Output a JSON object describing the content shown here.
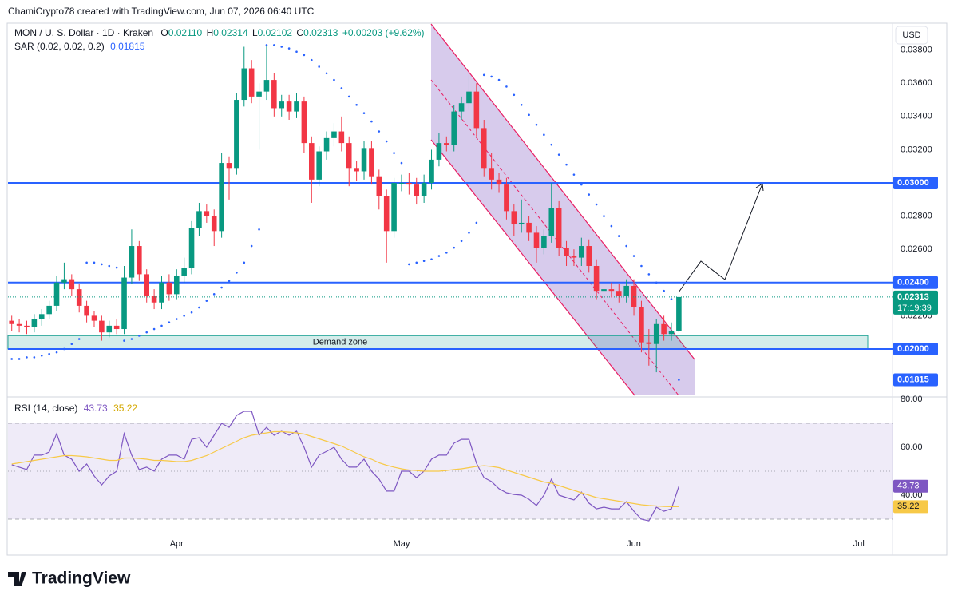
{
  "header": {
    "attribution": "ChamiCrypto78 created with TradingView.com, Jun 07, 2026 06:40 UTC",
    "currency": "USD"
  },
  "chart_data": [
    {
      "type": "candlestick",
      "title": "MON / U. S. Dollar · 1D · Kraken",
      "ohlc_legend": [
        {
          "key": "O",
          "value": "0.02110"
        },
        {
          "key": "H",
          "value": "0.02314"
        },
        {
          "key": "L",
          "value": "0.02102"
        },
        {
          "key": "C",
          "value": "0.02313"
        }
      ],
      "change": "+0.00203 (+9.62%)",
      "categories": [
        null,
        null,
        null,
        null,
        null,
        null,
        null,
        null,
        null,
        null,
        null,
        null,
        null,
        null,
        null,
        null,
        null,
        null,
        null,
        null,
        null,
        null,
        "Apr",
        null,
        null,
        null,
        null,
        null,
        null,
        null,
        null,
        null,
        null,
        null,
        null,
        null,
        null,
        null,
        null,
        null,
        null,
        null,
        null,
        null,
        null,
        null,
        null,
        null,
        null,
        null,
        null,
        null,
        "May",
        null,
        null,
        null,
        null,
        null,
        null,
        null,
        null,
        null,
        null,
        null,
        null,
        null,
        null,
        null,
        null,
        null,
        null,
        null,
        null,
        null,
        null,
        null,
        null,
        null,
        null,
        null,
        null,
        null,
        null,
        "Jun",
        null,
        null,
        null,
        null,
        null,
        null,
        null,
        null,
        null,
        null,
        null,
        null,
        null,
        null,
        null,
        null,
        null,
        null,
        null,
        null,
        null,
        null,
        null,
        null,
        null,
        null,
        null,
        null,
        null,
        "Jul",
        null,
        null,
        null,
        null
      ],
      "open": [
        0.0217,
        0.0215,
        0.0214,
        0.0213,
        0.0218,
        0.0221,
        0.0226,
        0.024,
        0.0242,
        0.0236,
        0.0226,
        0.022,
        0.0217,
        0.021,
        0.0214,
        0.0212,
        0.0243,
        0.0262,
        0.0245,
        0.0232,
        0.0228,
        0.024,
        0.0233,
        0.0244,
        0.0249,
        0.0273,
        0.0283,
        0.028,
        0.0271,
        0.0312,
        0.0309,
        0.035,
        0.0369,
        0.0352,
        0.0355,
        0.0362,
        0.0345,
        0.0349,
        0.0343,
        0.0349,
        0.0324,
        0.0302,
        0.0319,
        0.0327,
        0.0331,
        0.0324,
        0.0309,
        0.0307,
        0.0321,
        0.0304,
        0.0292,
        0.0271,
        0.03,
        0.03,
        0.0299,
        0.0292,
        0.03,
        0.0314,
        0.0324,
        0.0323,
        0.0343,
        0.0348,
        0.0355,
        0.0333,
        0.0309,
        0.0302,
        0.0299,
        0.0283,
        0.0275,
        0.0276,
        0.027,
        0.0261,
        0.0268,
        0.0285,
        0.0261,
        0.0256,
        0.0255,
        0.0262,
        0.025,
        0.0235,
        0.0236,
        0.0235,
        0.0232,
        0.0238,
        0.0225,
        0.0204,
        0.0203,
        0.0215,
        0.0209,
        0.0211,
        null,
        null,
        null,
        null,
        null,
        null,
        null,
        null,
        null,
        null,
        null,
        null,
        null,
        null,
        null,
        null,
        null,
        null,
        null,
        null,
        null,
        null,
        null,
        null,
        null,
        null,
        null,
        null
      ],
      "high": [
        0.022,
        0.0218,
        0.0217,
        0.0221,
        0.0224,
        0.0229,
        0.0244,
        0.0252,
        0.0245,
        0.0239,
        0.0229,
        0.0223,
        0.022,
        0.0217,
        0.0218,
        0.025,
        0.0272,
        0.0265,
        0.0248,
        0.0236,
        0.0244,
        0.0245,
        0.0248,
        0.0255,
        0.0277,
        0.0288,
        0.0287,
        0.0284,
        0.0318,
        0.0316,
        0.0354,
        0.0382,
        0.0374,
        0.036,
        0.0383,
        0.0366,
        0.0353,
        0.0353,
        0.0354,
        0.0352,
        0.0328,
        0.0322,
        0.0331,
        0.0336,
        0.034,
        0.0328,
        0.0313,
        0.0325,
        0.0325,
        0.0308,
        0.0296,
        0.0303,
        0.0305,
        0.0306,
        0.0303,
        0.0305,
        0.032,
        0.033,
        0.0328,
        0.0347,
        0.0352,
        0.0365,
        0.036,
        0.0338,
        0.0318,
        0.0306,
        0.0303,
        0.0287,
        0.029,
        0.028,
        0.0274,
        0.0272,
        0.03,
        0.0289,
        0.0265,
        0.026,
        0.0267,
        0.0266,
        0.0254,
        0.0242,
        0.024,
        0.0239,
        0.0242,
        0.0242,
        0.0229,
        0.0212,
        0.0218,
        0.022,
        0.0216,
        0.02314,
        null,
        null,
        null,
        null,
        null,
        null,
        null,
        null,
        null,
        null,
        null,
        null,
        null,
        null,
        null,
        null,
        null,
        null,
        null,
        null,
        null,
        null,
        null,
        null,
        null,
        null,
        null,
        null
      ],
      "low": [
        0.0211,
        0.021,
        0.0209,
        0.021,
        0.0214,
        0.0218,
        0.0223,
        0.0236,
        0.0232,
        0.0222,
        0.0216,
        0.0213,
        0.0205,
        0.0207,
        0.0209,
        0.0209,
        0.0239,
        0.0241,
        0.0228,
        0.0224,
        0.0224,
        0.0229,
        0.023,
        0.024,
        0.0245,
        0.0268,
        0.0276,
        0.0262,
        0.0267,
        0.029,
        0.0305,
        0.0346,
        0.0348,
        0.032,
        0.035,
        0.034,
        0.034,
        0.0338,
        0.0339,
        0.0318,
        0.0288,
        0.0298,
        0.0314,
        0.0322,
        0.0319,
        0.0298,
        0.0301,
        0.0302,
        0.0299,
        0.0284,
        0.0252,
        0.0267,
        0.0295,
        0.0293,
        0.0287,
        0.0288,
        0.0296,
        0.031,
        0.0319,
        0.0319,
        0.0338,
        0.0344,
        0.0328,
        0.0304,
        0.0296,
        0.0294,
        0.0278,
        0.0268,
        0.027,
        0.0265,
        0.0252,
        0.0257,
        0.0264,
        0.0256,
        0.025,
        0.025,
        0.025,
        0.0246,
        0.023,
        0.0231,
        0.0231,
        0.0228,
        0.0228,
        0.022,
        0.0198,
        0.019,
        0.0186,
        0.0205,
        0.0205,
        0.02102,
        null,
        null,
        null,
        null,
        null,
        null,
        null,
        null,
        null,
        null,
        null,
        null,
        null,
        null,
        null,
        null,
        null,
        null,
        null,
        null,
        null,
        null,
        null,
        null,
        null,
        null,
        null,
        null
      ],
      "close": [
        0.0215,
        0.0214,
        0.0213,
        0.0218,
        0.0221,
        0.0226,
        0.024,
        0.0242,
        0.0236,
        0.0226,
        0.022,
        0.0217,
        0.021,
        0.0214,
        0.0212,
        0.0243,
        0.0262,
        0.0245,
        0.0232,
        0.0228,
        0.024,
        0.0233,
        0.0244,
        0.0249,
        0.0273,
        0.0283,
        0.028,
        0.0271,
        0.0312,
        0.0309,
        0.035,
        0.0369,
        0.0352,
        0.0355,
        0.0362,
        0.0345,
        0.0349,
        0.0343,
        0.0349,
        0.0324,
        0.0302,
        0.0319,
        0.0327,
        0.0331,
        0.0324,
        0.0309,
        0.0307,
        0.0321,
        0.0304,
        0.0292,
        0.0271,
        0.03,
        0.03,
        0.0299,
        0.0292,
        0.03,
        0.0314,
        0.0324,
        0.0323,
        0.0343,
        0.0348,
        0.0355,
        0.0333,
        0.0309,
        0.0302,
        0.0299,
        0.0283,
        0.0275,
        0.0276,
        0.027,
        0.0261,
        0.0268,
        0.0285,
        0.0261,
        0.0256,
        0.0255,
        0.0262,
        0.025,
        0.0235,
        0.0236,
        0.0235,
        0.0232,
        0.0238,
        0.0225,
        0.0204,
        0.0203,
        0.0215,
        0.0209,
        0.0211,
        0.02313,
        null,
        null,
        null,
        null,
        null,
        null,
        null,
        null,
        null,
        null,
        null,
        null,
        null,
        null,
        null,
        null,
        null,
        null,
        null,
        null,
        null,
        null,
        null,
        null,
        null,
        null,
        null,
        null
      ],
      "up_color": "#089981",
      "down_color": "#f23645",
      "last_label": "0.02313",
      "countdown": "17:19:39",
      "series": [
        {
          "name": "SAR (0.02, 0.02, 0.2)",
          "color": "#2962ff",
          "last_label": "0.01815",
          "values": [
            0.0194,
            0.0194,
            0.0195,
            0.0195,
            0.0196,
            0.0197,
            0.0198,
            0.02,
            0.0203,
            0.0206,
            0.0252,
            0.0252,
            0.0251,
            0.025,
            0.0249,
            0.0205,
            0.0206,
            0.0208,
            0.021,
            0.0212,
            0.0214,
            0.0216,
            0.0218,
            0.022,
            0.0222,
            0.0225,
            0.0229,
            0.0233,
            0.0237,
            0.0241,
            0.0246,
            0.0252,
            0.0262,
            0.0272,
            0.0383,
            0.0383,
            0.0382,
            0.0381,
            0.0379,
            0.0377,
            0.0374,
            0.037,
            0.0366,
            0.0362,
            0.0357,
            0.0352,
            0.0347,
            0.0342,
            0.0337,
            0.0331,
            0.0325,
            0.0318,
            0.0312,
            0.0251,
            0.0252,
            0.0253,
            0.0254,
            0.0256,
            0.0258,
            0.0261,
            0.0265,
            0.027,
            0.0276,
            0.0365,
            0.0364,
            0.0362,
            0.0358,
            0.0353,
            0.0347,
            0.0341,
            0.0335,
            0.0329,
            0.0323,
            0.0317,
            0.0311,
            0.0305,
            0.0299,
            0.0293,
            0.0287,
            0.028,
            0.0274,
            0.0268,
            0.0262,
            0.0256,
            0.025,
            0.0245,
            0.024,
            0.0235,
            0.023,
            0.01815,
            null,
            null,
            null,
            null,
            null,
            null,
            null,
            null,
            null,
            null,
            null,
            null,
            null,
            null,
            null,
            null,
            null,
            null,
            null,
            null,
            null,
            null,
            null,
            null,
            null,
            null,
            null,
            null
          ]
        }
      ],
      "hlines": [
        {
          "value": 0.03,
          "label": "0.03000"
        },
        {
          "value": 0.024,
          "label": "0.02400"
        },
        {
          "value": 0.02,
          "label": "0.02000"
        }
      ],
      "hline_color": "#2962ff",
      "zone": {
        "label": "Demand zone",
        "range": [
          0.02,
          0.0208
        ]
      },
      "ylim": [
        0.01721,
        0.03957
      ],
      "yticks": [
        {
          "value": 0.022,
          "label": "0.02200"
        },
        {
          "value": 0.026,
          "label": "0.02600"
        },
        {
          "value": 0.028,
          "label": "0.02800"
        },
        {
          "value": 0.032,
          "label": "0.03200"
        },
        {
          "value": 0.034,
          "label": "0.03400"
        },
        {
          "value": 0.036,
          "label": "0.03600"
        },
        {
          "value": 0.038,
          "label": "0.03800"
        }
      ]
    },
    {
      "type": "line",
      "title": "RSI (14, close)",
      "series": [
        {
          "color": "#7e57c2",
          "last_label": "43.73",
          "values": [
            52.7,
            51.7,
            50.7,
            56.7,
            56.7,
            58,
            65.7,
            56.7,
            55,
            50,
            53,
            48,
            44.3,
            48,
            50,
            65.7,
            56.7,
            50.7,
            51.7,
            50,
            55,
            56.7,
            56.7,
            55,
            63.3,
            64,
            60,
            65,
            70,
            68.3,
            73.3,
            75,
            75,
            65,
            68.3,
            65,
            66.7,
            65,
            66.7,
            60,
            51.7,
            56.7,
            58.3,
            60,
            55,
            51.7,
            51.7,
            55,
            50,
            46.7,
            41.7,
            41.7,
            50,
            50,
            47.3,
            50,
            55,
            56.7,
            56.7,
            61.7,
            63.3,
            63.3,
            53.3,
            47.3,
            45.7,
            42.7,
            41,
            40.3,
            40,
            38.3,
            35.7,
            40,
            46.7,
            40,
            39,
            38,
            41.3,
            36.7,
            34.3,
            35,
            34.3,
            34.3,
            37.3,
            33.3,
            30,
            29.3,
            35,
            33.3,
            34.3,
            43.73,
            null,
            null,
            null,
            null,
            null,
            null,
            null,
            null,
            null,
            null,
            null,
            null,
            null,
            null,
            null,
            null,
            null,
            null,
            null,
            null,
            null,
            null,
            null,
            null,
            null,
            null,
            null,
            null
          ]
        },
        {
          "color": "#f7c948",
          "last_label": "35.22",
          "values": [
            53,
            53.5,
            54,
            54.5,
            55,
            55.5,
            56,
            56.5,
            56.5,
            56.3,
            56,
            55.5,
            55,
            54.5,
            54.5,
            55.5,
            55.5,
            55.3,
            55,
            54.5,
            54.5,
            54.3,
            54,
            54,
            54.5,
            55.5,
            56.5,
            58,
            59.5,
            61,
            62.5,
            64,
            65,
            65.5,
            66,
            66.5,
            66.5,
            66.3,
            66,
            65.5,
            64.5,
            63.5,
            62.5,
            61.5,
            60.5,
            59,
            57.5,
            56,
            55,
            53.5,
            52.5,
            51.7,
            51,
            50.5,
            50.3,
            50,
            50,
            50,
            50.3,
            50.7,
            51,
            51.5,
            52,
            52.3,
            52,
            51.5,
            50.5,
            49.5,
            48.5,
            47.5,
            46.5,
            45.5,
            45,
            44,
            43,
            42,
            41,
            40,
            39,
            38.5,
            38,
            37.5,
            37,
            36.5,
            36,
            35.7,
            35.5,
            35.3,
            35.2,
            35.22,
            null,
            null,
            null,
            null,
            null,
            null,
            null,
            null,
            null,
            null,
            null,
            null,
            null,
            null,
            null,
            null,
            null,
            null,
            null,
            null,
            null,
            null,
            null,
            null,
            null,
            null,
            null,
            null
          ]
        }
      ],
      "levels": [
        70,
        50,
        30
      ],
      "ylim": [
        25,
        81
      ],
      "yticks": [
        {
          "value": 80,
          "label": "80.00"
        },
        {
          "value": 60,
          "label": "60.00"
        },
        {
          "value": 40,
          "label": "40.00"
        }
      ]
    }
  ],
  "footer": {
    "brand": "TradingView"
  }
}
